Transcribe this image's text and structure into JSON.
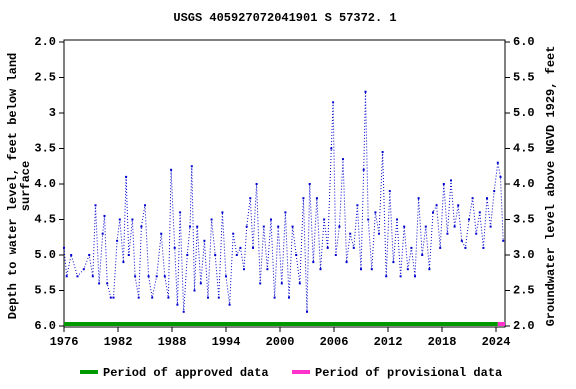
{
  "chart_data": {
    "type": "line",
    "title": "USGS 405927072041901 S 57372. 1",
    "ylabel": [
      "Depth to water level, feet below land",
      "surface"
    ],
    "y2label": "Groundwater level above NGVD 1929, feet",
    "xlim": [
      1976,
      2025
    ],
    "xticks": [
      1976,
      1982,
      1988,
      1994,
      2000,
      2006,
      2012,
      2018,
      2024
    ],
    "ylim": [
      2.0,
      6.0
    ],
    "y_inverted": true,
    "yticks": [
      {
        "value": 2,
        "label": "2.0"
      },
      2.5,
      3,
      {
        "value": 3.5,
        "label": "3.5"
      },
      {
        "value": 4,
        "label": "4.0"
      },
      4.5,
      {
        "value": 5,
        "label": "5.0"
      },
      5.5,
      {
        "value": 6,
        "label": "6.0"
      }
    ],
    "y2lim": [
      2.0,
      6.0
    ],
    "y2ticks": [
      {
        "value": 2,
        "label": "2.0"
      },
      2.5,
      {
        "value": 3,
        "label": "3.0"
      },
      3.5,
      {
        "value": 4,
        "label": "4.0"
      },
      4.5,
      {
        "value": 5,
        "label": "5.0"
      },
      5.5,
      {
        "value": 6,
        "label": "6.0"
      }
    ],
    "series": [
      {
        "color": "#0000cc",
        "x": [
          1976.0,
          1976.3,
          1976.8,
          1977.5,
          1978.2,
          1978.8,
          1979.2,
          1979.5,
          1979.9,
          1980.3,
          1980.5,
          1980.8,
          1981.2,
          1981.5,
          1981.9,
          1982.2,
          1982.6,
          1982.9,
          1983.2,
          1983.6,
          1983.9,
          1984.3,
          1984.6,
          1985.0,
          1985.4,
          1985.8,
          1986.3,
          1986.8,
          1987.2,
          1987.6,
          1987.9,
          1988.3,
          1988.6,
          1988.9,
          1989.3,
          1989.7,
          1990.0,
          1990.2,
          1990.5,
          1990.8,
          1991.2,
          1991.6,
          1992.0,
          1992.4,
          1992.8,
          1993.2,
          1993.6,
          1994.0,
          1994.4,
          1994.8,
          1995.2,
          1995.6,
          1996.0,
          1996.3,
          1996.7,
          1997.0,
          1997.4,
          1997.8,
          1998.2,
          1998.6,
          1999.0,
          1999.4,
          1999.8,
          2000.2,
          2000.6,
          2001.0,
          2001.4,
          2001.8,
          2002.2,
          2002.6,
          2003.0,
          2003.3,
          2003.7,
          2004.1,
          2004.5,
          2004.9,
          2005.3,
          2005.7,
          2005.9,
          2006.2,
          2006.6,
          2007.0,
          2007.4,
          2007.8,
          2008.2,
          2008.6,
          2009.0,
          2009.3,
          2009.5,
          2009.8,
          2010.2,
          2010.6,
          2011.0,
          2011.4,
          2011.8,
          2012.2,
          2012.6,
          2013.0,
          2013.4,
          2013.8,
          2014.2,
          2014.6,
          2015.0,
          2015.4,
          2015.8,
          2016.2,
          2016.6,
          2017.0,
          2017.4,
          2017.8,
          2018.2,
          2018.6,
          2019.0,
          2019.4,
          2019.8,
          2020.2,
          2020.6,
          2021.0,
          2021.4,
          2021.8,
          2022.2,
          2022.6,
          2023.0,
          2023.4,
          2023.8,
          2024.2,
          2024.5,
          2024.8
        ],
        "values": [
          4.9,
          5.3,
          5.0,
          5.3,
          5.2,
          5.0,
          5.3,
          4.3,
          5.4,
          4.7,
          4.45,
          5.4,
          5.6,
          5.6,
          4.8,
          4.5,
          5.1,
          3.9,
          5.0,
          4.5,
          5.3,
          5.6,
          4.6,
          4.3,
          5.3,
          5.6,
          5.3,
          4.7,
          5.3,
          5.6,
          3.8,
          4.9,
          5.7,
          4.4,
          5.8,
          5.0,
          4.6,
          3.75,
          5.5,
          4.6,
          5.4,
          4.8,
          5.6,
          4.5,
          5.0,
          5.6,
          4.4,
          5.3,
          5.7,
          4.7,
          5.0,
          4.9,
          5.2,
          4.6,
          4.2,
          4.9,
          4.0,
          5.4,
          4.6,
          5.2,
          4.5,
          5.6,
          4.6,
          5.4,
          4.4,
          5.6,
          4.6,
          5.0,
          5.4,
          4.2,
          5.8,
          4.0,
          5.1,
          4.2,
          5.2,
          4.5,
          4.9,
          3.5,
          2.85,
          5.0,
          4.6,
          3.65,
          5.1,
          4.7,
          4.9,
          4.3,
          5.2,
          3.8,
          2.7,
          4.5,
          5.2,
          4.4,
          4.7,
          3.55,
          5.3,
          4.1,
          5.1,
          4.5,
          5.3,
          4.6,
          5.2,
          4.9,
          5.3,
          4.2,
          5.0,
          4.6,
          5.2,
          4.4,
          4.3,
          4.9,
          4.0,
          4.7,
          3.95,
          4.6,
          4.3,
          4.8,
          4.9,
          4.5,
          4.2,
          4.7,
          4.4,
          4.9,
          4.2,
          4.6,
          4.1,
          3.7,
          3.9,
          4.8
        ]
      }
    ],
    "periods": [
      {
        "name": "Period of approved data",
        "color": "#009900",
        "start": 1976,
        "end": 2024.2
      },
      {
        "name": "Period of provisional data",
        "color": "#ff33cc",
        "start": 2024.2,
        "end": 2025
      }
    ]
  }
}
